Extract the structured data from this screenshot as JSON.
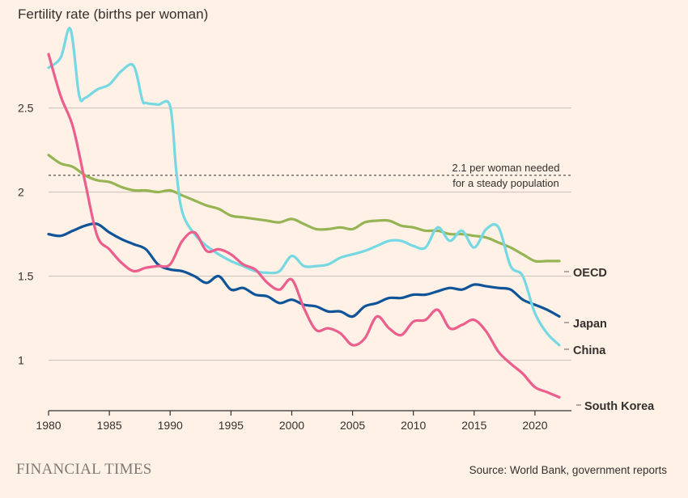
{
  "chart_data": {
    "type": "line",
    "title": "Fertility rate (births per woman)",
    "xlabel": "",
    "ylabel": "",
    "xlim": [
      1980,
      2023
    ],
    "ylim": [
      0.7,
      2.95
    ],
    "x_ticks": [
      1980,
      1985,
      1990,
      1995,
      2000,
      2005,
      2010,
      2015,
      2020
    ],
    "y_ticks": [
      1,
      1.5,
      2,
      2.5
    ],
    "y_tick_labels": [
      "1",
      "1.5",
      "2",
      "2.5"
    ],
    "reference_line": {
      "value": 2.1,
      "label_line1": "2.1 per woman needed",
      "label_line2": "for a steady population"
    },
    "series": [
      {
        "name": "OECD",
        "color": "#96b454",
        "x": [
          1980,
          1981,
          1982,
          1983,
          1984,
          1985,
          1986,
          1987,
          1988,
          1989,
          1990,
          1991,
          1992,
          1993,
          1994,
          1995,
          1996,
          1997,
          1998,
          1999,
          2000,
          2001,
          2002,
          2003,
          2004,
          2005,
          2006,
          2007,
          2008,
          2009,
          2010,
          2011,
          2012,
          2013,
          2014,
          2015,
          2016,
          2017,
          2018,
          2019,
          2020,
          2021,
          2022
        ],
        "values": [
          2.22,
          2.17,
          2.15,
          2.1,
          2.07,
          2.06,
          2.03,
          2.01,
          2.01,
          2.0,
          2.01,
          1.98,
          1.95,
          1.92,
          1.9,
          1.86,
          1.85,
          1.84,
          1.83,
          1.82,
          1.84,
          1.81,
          1.78,
          1.78,
          1.79,
          1.78,
          1.82,
          1.83,
          1.83,
          1.8,
          1.79,
          1.77,
          1.77,
          1.75,
          1.75,
          1.74,
          1.73,
          1.7,
          1.67,
          1.63,
          1.59,
          1.59,
          1.59
        ]
      },
      {
        "name": "Japan",
        "color": "#0f5499",
        "x": [
          1980,
          1981,
          1982,
          1983,
          1984,
          1985,
          1986,
          1987,
          1988,
          1989,
          1990,
          1991,
          1992,
          1993,
          1994,
          1995,
          1996,
          1997,
          1998,
          1999,
          2000,
          2001,
          2002,
          2003,
          2004,
          2005,
          2006,
          2007,
          2008,
          2009,
          2010,
          2011,
          2012,
          2013,
          2014,
          2015,
          2016,
          2017,
          2018,
          2019,
          2020,
          2021,
          2022
        ],
        "values": [
          1.75,
          1.74,
          1.77,
          1.8,
          1.81,
          1.76,
          1.72,
          1.69,
          1.66,
          1.57,
          1.54,
          1.53,
          1.5,
          1.46,
          1.5,
          1.42,
          1.43,
          1.39,
          1.38,
          1.34,
          1.36,
          1.33,
          1.32,
          1.29,
          1.29,
          1.26,
          1.32,
          1.34,
          1.37,
          1.37,
          1.39,
          1.39,
          1.41,
          1.43,
          1.42,
          1.45,
          1.44,
          1.43,
          1.42,
          1.36,
          1.33,
          1.3,
          1.26
        ]
      },
      {
        "name": "China",
        "color": "#75d8e3",
        "x": [
          1980,
          1981,
          1981.8,
          1982.5,
          1983,
          1984,
          1985,
          1986,
          1987,
          1987.7,
          1988,
          1989,
          1990,
          1990.5,
          1991,
          1992,
          1993,
          1994,
          1995,
          1996,
          1997,
          1998,
          1999,
          2000,
          2001,
          2002,
          2003,
          2004,
          2005,
          2006,
          2007,
          2008,
          2009,
          2010,
          2011,
          2012,
          2013,
          2014,
          2015,
          2016,
          2017,
          2018,
          2019,
          2020,
          2021,
          2022
        ],
        "values": [
          2.74,
          2.8,
          2.97,
          2.58,
          2.56,
          2.61,
          2.64,
          2.72,
          2.75,
          2.55,
          2.53,
          2.52,
          2.51,
          2.13,
          1.88,
          1.75,
          1.68,
          1.63,
          1.59,
          1.56,
          1.53,
          1.52,
          1.53,
          1.62,
          1.56,
          1.56,
          1.57,
          1.61,
          1.63,
          1.65,
          1.68,
          1.71,
          1.71,
          1.68,
          1.67,
          1.79,
          1.71,
          1.77,
          1.67,
          1.78,
          1.79,
          1.56,
          1.5,
          1.28,
          1.16,
          1.09
        ]
      },
      {
        "name": "South Korea",
        "color": "#eb5e8d",
        "x": [
          1980,
          1981,
          1982,
          1983,
          1984,
          1985,
          1986,
          1987,
          1988,
          1989,
          1990,
          1991,
          1992,
          1993,
          1994,
          1995,
          1996,
          1997,
          1998,
          1999,
          2000,
          2001,
          2002,
          2003,
          2004,
          2005,
          2006,
          2007,
          2008,
          2009,
          2010,
          2011,
          2012,
          2013,
          2014,
          2015,
          2016,
          2017,
          2018,
          2019,
          2020,
          2021,
          2022
        ],
        "values": [
          2.82,
          2.57,
          2.39,
          2.06,
          1.74,
          1.66,
          1.58,
          1.53,
          1.55,
          1.56,
          1.57,
          1.71,
          1.76,
          1.65,
          1.66,
          1.63,
          1.57,
          1.54,
          1.46,
          1.42,
          1.48,
          1.31,
          1.18,
          1.19,
          1.16,
          1.09,
          1.13,
          1.26,
          1.19,
          1.15,
          1.23,
          1.24,
          1.3,
          1.19,
          1.21,
          1.24,
          1.17,
          1.05,
          0.98,
          0.92,
          0.84,
          0.81,
          0.78
        ]
      }
    ]
  },
  "series_labels": {
    "oecd": "OECD",
    "japan": "Japan",
    "china": "China",
    "south_korea": "South Korea"
  },
  "footer": {
    "brand": "FINANCIAL TIMES",
    "source": "Source: World Bank, government reports"
  }
}
